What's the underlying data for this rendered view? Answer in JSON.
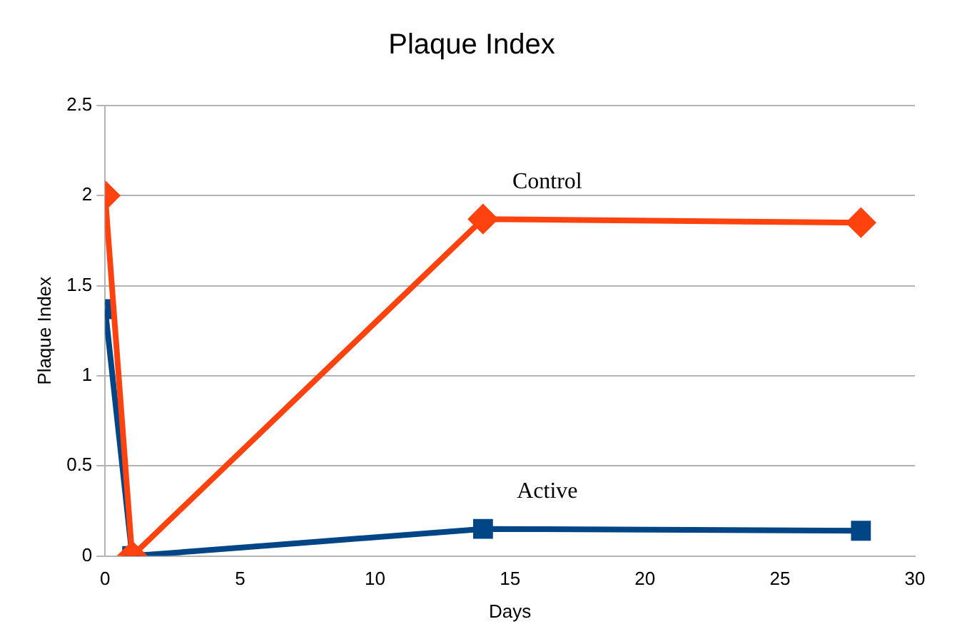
{
  "chart_data": {
    "type": "line",
    "title": "Plaque Index",
    "xlabel": "Days",
    "ylabel": "Plaque Index",
    "x": [
      0,
      1,
      14,
      28
    ],
    "series": [
      {
        "name": "Control",
        "color": "#ff420e",
        "marker": "diamond",
        "values": [
          2,
          0,
          1.87,
          1.85
        ]
      },
      {
        "name": "Active",
        "color": "#004586",
        "marker": "square",
        "values": [
          1.37,
          0,
          0.15,
          0.14
        ]
      }
    ],
    "xlim": [
      0,
      30
    ],
    "xticks": [
      0,
      5,
      10,
      15,
      20,
      25,
      30
    ],
    "ylim": [
      0,
      2.5
    ],
    "yticks": [
      0,
      0.5,
      1,
      1.5,
      2,
      2.5
    ],
    "grid": "y",
    "legend": false
  }
}
